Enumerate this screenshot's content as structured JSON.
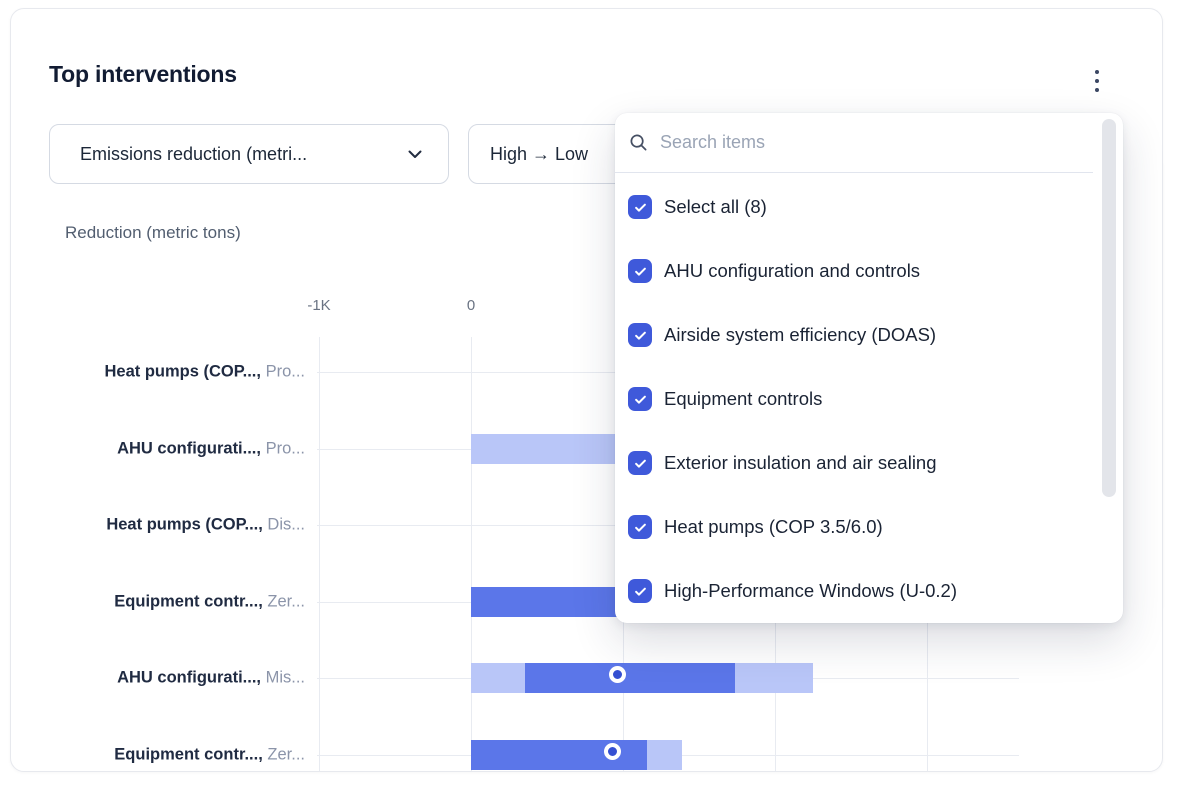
{
  "panel": {
    "title": "Top interventions",
    "menu_icon": "kebab-vertical-icon"
  },
  "filters": {
    "metric_select": {
      "value": "Emissions reduction (metri...",
      "icon": "chevron-down-icon"
    },
    "sort_select": {
      "value": "High → Low"
    }
  },
  "dropdown": {
    "search": {
      "placeholder": "Search items",
      "icon": "search-icon"
    },
    "items": [
      {
        "label": "Select all (8)",
        "checked": true
      },
      {
        "label": "AHU configuration and controls",
        "checked": true
      },
      {
        "label": "Airside system efficiency (DOAS)",
        "checked": true
      },
      {
        "label": "Equipment controls",
        "checked": true
      },
      {
        "label": "Exterior insulation and air sealing",
        "checked": true
      },
      {
        "label": "Heat pumps (COP 3.5/6.0)",
        "checked": true
      },
      {
        "label": "High-Performance Windows (U-0.2)",
        "checked": true
      }
    ]
  },
  "chart_data": {
    "type": "bar",
    "orientation": "horizontal",
    "title": "Reduction (metric tons)",
    "axis": {
      "position": "top",
      "ticks": [
        {
          "label": "-1K",
          "units": -1000
        },
        {
          "label": "0",
          "units": 0
        }
      ],
      "gridline_units": [
        -1000,
        0,
        1000,
        2000,
        3000
      ],
      "x_range_units": [
        -1000,
        3600
      ],
      "grid": true
    },
    "rows": [
      {
        "label_bold": "Heat pumps (COP...,",
        "label_gray": "Pro...",
        "segments": [],
        "marker": null
      },
      {
        "label_bold": "AHU configurati...,",
        "label_gray": "Pro...",
        "segments": [
          {
            "color": "light",
            "from": 0,
            "to": 1000,
            "occluded_end": true
          }
        ],
        "marker": null
      },
      {
        "label_bold": "Heat pumps (COP...,",
        "label_gray": "Dis...",
        "segments": [],
        "marker": null
      },
      {
        "label_bold": "Equipment contr...,",
        "label_gray": "Zer...",
        "segments": [
          {
            "color": "solid",
            "from": 0,
            "to": 1000,
            "occluded_end": true
          }
        ],
        "marker": null
      },
      {
        "label_bold": "AHU configurati...,",
        "label_gray": "Mis...",
        "segments": [
          {
            "color": "light",
            "from": 0,
            "to": 355
          },
          {
            "color": "solid",
            "from": 355,
            "to": 1740
          },
          {
            "color": "light",
            "from": 1740,
            "to": 2250
          }
        ],
        "marker": 990
      },
      {
        "label_bold": "Equipment contr...,",
        "label_gray": "Zer...",
        "segments": [
          {
            "color": "solid",
            "from": 0,
            "to": 1155
          },
          {
            "color": "light",
            "from": 1155,
            "to": 1385
          }
        ],
        "marker": 960
      }
    ]
  },
  "colors": {
    "bar_light": "#b9c6f8",
    "bar_solid": "#5b76e9",
    "marker_inner": "#3550d2",
    "checkbox": "#3f59da",
    "title_text": "#121c33",
    "gridline": "#e8ebf1"
  }
}
